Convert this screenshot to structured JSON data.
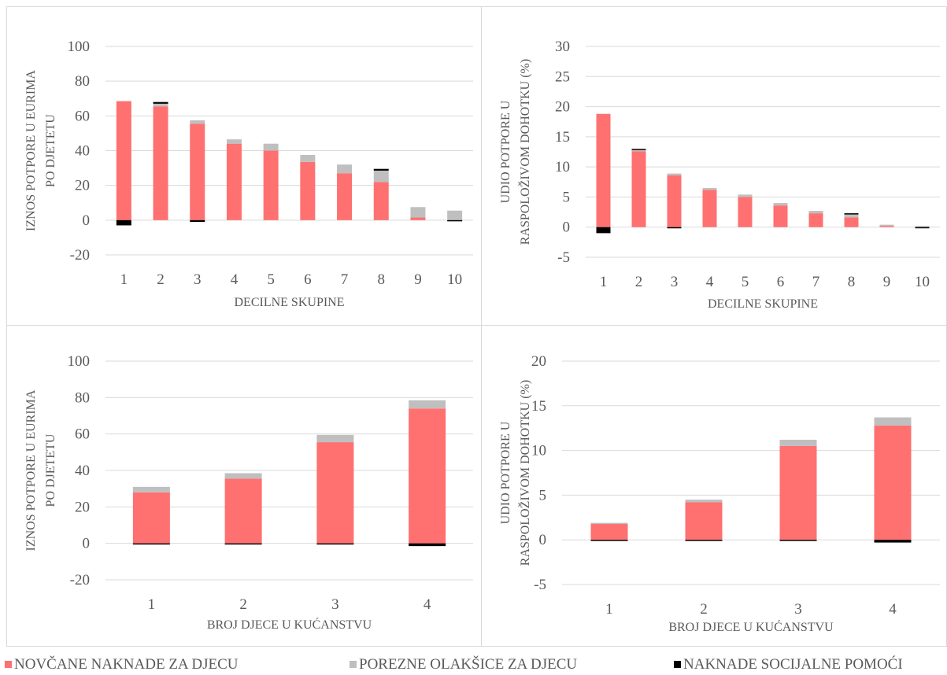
{
  "colors": {
    "cash": "#ff7070",
    "tax": "#bfbfbf",
    "social": "#000000",
    "grid": "#d9d9d9",
    "text": "#595959"
  },
  "legend": [
    {
      "label": "NOVČANE NAKNADE ZA DJECU",
      "color": "#ff7070",
      "icon": "square-swatch"
    },
    {
      "label": "POREZNE OLAKŠICE ZA DJECU",
      "color": "#bfbfbf",
      "icon": "square-swatch"
    },
    {
      "label": "NAKNADE SOCIJALNE POMOĆI",
      "color": "#000000",
      "icon": "square-swatch"
    }
  ],
  "chart_data": [
    {
      "type": "bar",
      "stacked": true,
      "ylabel_lines": [
        "IZNOS POTPORE U EURIMA",
        "PO DJETETU"
      ],
      "xlabel": "DECILNE SKUPINE",
      "ylim": [
        -20,
        100
      ],
      "yticks": [
        -20,
        0,
        20,
        40,
        60,
        80,
        100
      ],
      "grid": true,
      "categories": [
        "1",
        "2",
        "3",
        "4",
        "5",
        "6",
        "7",
        "8",
        "9",
        "10"
      ],
      "series": [
        {
          "name": "NOVČANE NAKNADE ZA DJECU",
          "values": [
            68.5,
            65.5,
            55.5,
            44,
            40,
            33.5,
            27,
            22,
            1.5,
            0
          ]
        },
        {
          "name": "POREZNE OLAKŠICE ZA DJECU",
          "values": [
            0,
            1.5,
            2,
            2.5,
            4,
            4,
            5,
            6.5,
            6,
            5.5
          ]
        },
        {
          "name": "NAKNADE SOCIJALNE POMOĆI",
          "values": [
            -3,
            1,
            -1,
            0,
            0,
            0,
            0,
            1,
            0,
            -0.5
          ]
        }
      ]
    },
    {
      "type": "bar",
      "stacked": true,
      "ylabel_lines": [
        "UDIO POTPORE U",
        "RASPOLOŽIVOM DOHOTKU (%)"
      ],
      "xlabel": "DECILNE SKUPINE",
      "ylim": [
        -5,
        30
      ],
      "yticks": [
        -5,
        0,
        5,
        10,
        15,
        20,
        25,
        30
      ],
      "grid": true,
      "categories": [
        "1",
        "2",
        "3",
        "4",
        "5",
        "6",
        "7",
        "8",
        "9",
        "10"
      ],
      "series": [
        {
          "name": "NOVČANE NAKNADE ZA DJECU",
          "values": [
            18.8,
            12.6,
            8.6,
            6.2,
            5.0,
            3.6,
            2.3,
            1.6,
            0.2,
            0
          ]
        },
        {
          "name": "POREZNE OLAKŠICE ZA DJECU",
          "values": [
            0,
            0.2,
            0.3,
            0.3,
            0.4,
            0.4,
            0.4,
            0.5,
            0.2,
            0.2
          ]
        },
        {
          "name": "NAKNADE SOCIJALNE POMOĆI",
          "values": [
            -1,
            0.2,
            -0.2,
            0,
            0,
            0,
            0,
            0.2,
            0,
            -0.1
          ]
        }
      ]
    },
    {
      "type": "bar",
      "stacked": true,
      "ylabel_lines": [
        "IZNOS POTPORE U EURIMA",
        "PO DJETETU"
      ],
      "xlabel": "BROJ DJECE U KUĆANSTVU",
      "ylim": [
        -20,
        100
      ],
      "yticks": [
        -20,
        0,
        20,
        40,
        60,
        80,
        100
      ],
      "grid": true,
      "categories": [
        "1",
        "2",
        "3",
        "4"
      ],
      "series": [
        {
          "name": "NOVČANE NAKNADE ZA DJECU",
          "values": [
            28,
            35.5,
            55.5,
            74
          ]
        },
        {
          "name": "POREZNE OLAKŠICE ZA DJECU",
          "values": [
            3,
            3,
            4,
            4.5
          ]
        },
        {
          "name": "NAKNADE SOCIJALNE POMOĆI",
          "values": [
            -0.5,
            -0.5,
            -0.5,
            -1.5
          ]
        }
      ]
    },
    {
      "type": "bar",
      "stacked": true,
      "ylabel_lines": [
        "UDIO POTPORE U",
        "RASPOLOŽIVOM DOHOTKU (%)"
      ],
      "xlabel": "BROJ DJECE U KUĆANSTVU",
      "ylim": [
        -5,
        20
      ],
      "yticks": [
        -5,
        0,
        5,
        10,
        15,
        20
      ],
      "grid": true,
      "categories": [
        "1",
        "2",
        "3",
        "4"
      ],
      "series": [
        {
          "name": "NOVČANE NAKNADE ZA DJECU",
          "values": [
            1.8,
            4.2,
            10.5,
            12.8
          ]
        },
        {
          "name": "POREZNE OLAKŠICE ZA DJECU",
          "values": [
            0.1,
            0.3,
            0.7,
            0.9
          ]
        },
        {
          "name": "NAKNADE SOCIJALNE POMOĆI",
          "values": [
            -0.1,
            -0.1,
            -0.1,
            -0.3
          ]
        }
      ]
    }
  ]
}
